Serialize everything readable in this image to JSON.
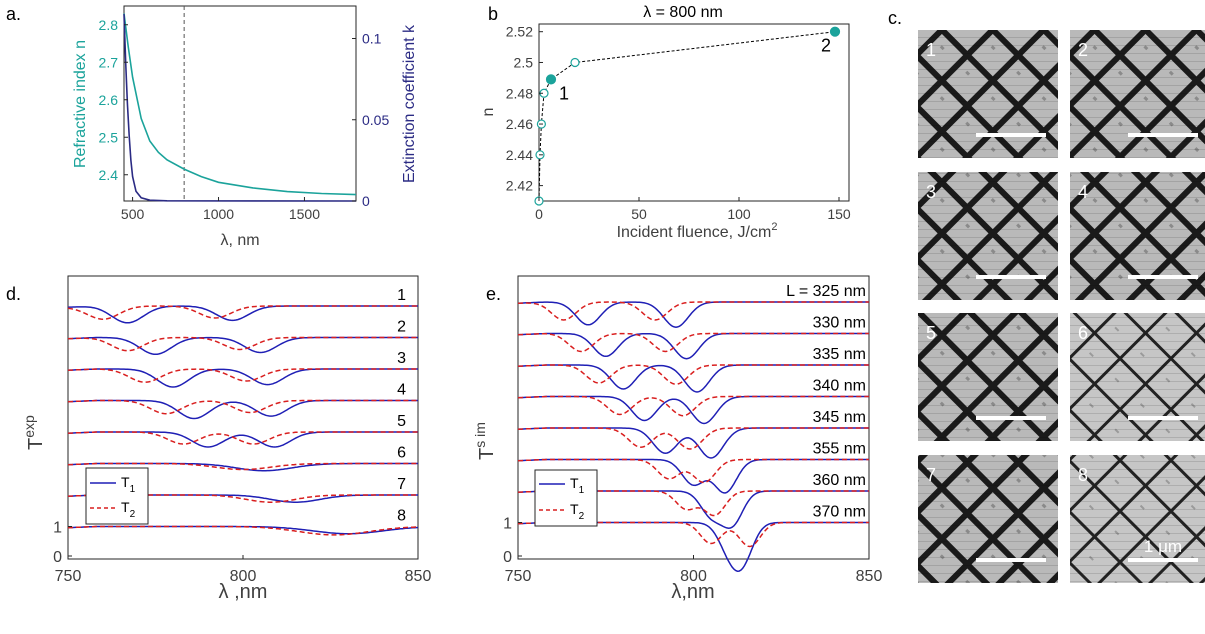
{
  "colors": {
    "teal": "#1ba39b",
    "navy": "#2b2b84",
    "blue": "#1f1fb5",
    "red": "#d91f1f",
    "axis": "#262626",
    "text": "#404040"
  },
  "panels": {
    "a": "a.",
    "b": "b",
    "c": "c.",
    "d": "d.",
    "e": "e."
  },
  "chart_data": [
    {
      "id": "a",
      "type": "line",
      "xlabel": "λ, nm",
      "ylabel_left": "Refractive index n",
      "ylabel_right": "Extinction coefficient k",
      "xlim": [
        450,
        1800
      ],
      "ylim_left": [
        2.33,
        2.85
      ],
      "ylim_right": [
        0,
        0.12
      ],
      "xticks": [
        "500",
        "1000",
        "1500"
      ],
      "xtick_values": [
        500,
        1000,
        1500
      ],
      "yticks_left": [
        "2.4",
        "2.5",
        "2.6",
        "2.7",
        "2.8"
      ],
      "ytick_values_left": [
        2.4,
        2.5,
        2.6,
        2.7,
        2.8
      ],
      "yticks_right": [
        "0",
        "0.05",
        "0.1"
      ],
      "ytick_values_right": [
        0,
        0.05,
        0.1
      ],
      "vline_x": 800,
      "series": [
        {
          "axis": "left",
          "color": "teal",
          "x": [
            450,
            475,
            500,
            550,
            600,
            650,
            700,
            800,
            900,
            1000,
            1200,
            1400,
            1600,
            1800
          ],
          "y": [
            2.83,
            2.74,
            2.66,
            2.55,
            2.49,
            2.46,
            2.44,
            2.415,
            2.395,
            2.38,
            2.365,
            2.355,
            2.35,
            2.347
          ]
        },
        {
          "axis": "right",
          "color": "navy",
          "x": [
            450,
            460,
            470,
            480,
            490,
            500,
            520,
            550,
            600,
            700,
            1800
          ],
          "y": [
            0.115,
            0.085,
            0.06,
            0.04,
            0.025,
            0.015,
            0.006,
            0.002,
            0.0005,
            0.0001,
            0
          ]
        }
      ]
    },
    {
      "id": "b",
      "type": "scatter",
      "title": "λ = 800 nm",
      "xlabel": "Incident fluence, J/cm",
      "xlabel_sup": "2",
      "ylabel": "n",
      "xlim": [
        0,
        155
      ],
      "ylim": [
        2.41,
        2.525
      ],
      "xticks": [
        "0",
        "50",
        "100",
        "150"
      ],
      "xtick_values": [
        0,
        50,
        100,
        150
      ],
      "yticks": [
        "2.42",
        "2.44",
        "2.46",
        "2.48",
        "2.5",
        "2.52"
      ],
      "ytick_values": [
        2.42,
        2.44,
        2.46,
        2.48,
        2.5,
        2.52
      ],
      "points": [
        {
          "x": 0,
          "y": 2.41,
          "filled": false
        },
        {
          "x": 0.5,
          "y": 2.44,
          "filled": false
        },
        {
          "x": 1.2,
          "y": 2.46,
          "filled": false
        },
        {
          "x": 2.5,
          "y": 2.48,
          "filled": false
        },
        {
          "x": 6,
          "y": 2.489,
          "filled": true,
          "label": "1"
        },
        {
          "x": 18,
          "y": 2.5,
          "filled": false
        },
        {
          "x": 148,
          "y": 2.52,
          "filled": true,
          "label": "2"
        }
      ]
    },
    {
      "id": "d",
      "type": "line",
      "ylabel": "T",
      "ylabel_sub": "exp",
      "xlabel": "λ ,nm",
      "xlim": [
        750,
        850
      ],
      "xticks": [
        "750",
        "800",
        "850"
      ],
      "xtick_values": [
        750,
        800,
        850
      ],
      "yticks": [
        "0",
        "1"
      ],
      "legend": [
        "T",
        "T"
      ],
      "legend_subs": [
        "1",
        "2"
      ],
      "curve_labels": [
        "1",
        "2",
        "3",
        "4",
        "5",
        "6",
        "7",
        "8"
      ],
      "dips": [
        {
          "t1": [
            767,
            797
          ],
          "t2": [
            760,
            792
          ],
          "depth1": [
            0.28,
            0.24
          ],
          "depth2": [
            0.22,
            0.2
          ],
          "w": 4.5
        },
        {
          "t1": [
            775,
            805
          ],
          "t2": [
            767,
            799
          ],
          "depth1": [
            0.28,
            0.25
          ],
          "depth2": [
            0.22,
            0.2
          ],
          "w": 4.5
        },
        {
          "t1": [
            780,
            807
          ],
          "t2": [
            772,
            801
          ],
          "depth1": [
            0.3,
            0.26
          ],
          "depth2": [
            0.22,
            0.2
          ],
          "w": 4.5
        },
        {
          "t1": [
            786,
            808
          ],
          "t2": [
            778,
            802
          ],
          "depth1": [
            0.3,
            0.26
          ],
          "depth2": [
            0.22,
            0.2
          ],
          "w": 4.5
        },
        {
          "t1": [
            790,
            809
          ],
          "t2": [
            783,
            803
          ],
          "depth1": [
            0.25,
            0.25
          ],
          "depth2": [
            0.2,
            0.2
          ],
          "w": 4.5
        },
        {
          "t1": [
            806,
            806
          ],
          "t2": [
            800,
            800
          ],
          "depth1": [
            0.12,
            0.12
          ],
          "depth2": [
            0.1,
            0.1
          ],
          "w": 8
        },
        {
          "t1": [
            815,
            815
          ],
          "t2": [
            808,
            808
          ],
          "depth1": [
            0.12,
            0.12
          ],
          "depth2": [
            0.12,
            0.12
          ],
          "w": 7
        },
        {
          "t1": [
            830,
            830
          ],
          "t2": [
            826,
            826
          ],
          "depth1": [
            0.12,
            0.12
          ],
          "depth2": [
            0.14,
            0.14
          ],
          "w": 10
        }
      ]
    },
    {
      "id": "e",
      "type": "line",
      "ylabel": "T",
      "ylabel_sub": "s im",
      "xlabel": "λ,nm",
      "xlim": [
        750,
        850
      ],
      "xticks": [
        "750",
        "800",
        "850"
      ],
      "xtick_values": [
        750,
        800,
        850
      ],
      "yticks": [
        "0",
        "1"
      ],
      "legend": [
        "T",
        "T"
      ],
      "legend_subs": [
        "1",
        "2"
      ],
      "curve_labels": [
        "L = 325 nm",
        "330 nm",
        "335 nm",
        "340 nm",
        "345 nm",
        "355 nm",
        "360 nm",
        "370 nm"
      ],
      "dips": [
        {
          "t1": [
            770,
            795
          ],
          "t2": [
            763,
            789
          ],
          "depth1": [
            0.38,
            0.42
          ],
          "depth2": [
            0.3,
            0.3
          ],
          "w": 3.5
        },
        {
          "t1": [
            775,
            798
          ],
          "t2": [
            768,
            792
          ],
          "depth1": [
            0.38,
            0.42
          ],
          "depth2": [
            0.3,
            0.3
          ],
          "w": 3.5
        },
        {
          "t1": [
            780,
            801
          ],
          "t2": [
            773,
            795
          ],
          "depth1": [
            0.4,
            0.45
          ],
          "depth2": [
            0.3,
            0.32
          ],
          "w": 3.5
        },
        {
          "t1": [
            786,
            803
          ],
          "t2": [
            779,
            797
          ],
          "depth1": [
            0.4,
            0.45
          ],
          "depth2": [
            0.3,
            0.32
          ],
          "w": 3.5
        },
        {
          "t1": [
            792,
            805
          ],
          "t2": [
            785,
            799
          ],
          "depth1": [
            0.42,
            0.5
          ],
          "depth2": [
            0.32,
            0.35
          ],
          "w": 3.5
        },
        {
          "t1": [
            800,
            809
          ],
          "t2": [
            793,
            803
          ],
          "depth1": [
            0.42,
            0.55
          ],
          "depth2": [
            0.32,
            0.38
          ],
          "w": 3.2
        },
        {
          "t1": [
            805,
            811
          ],
          "t2": [
            798,
            806
          ],
          "depth1": [
            0.4,
            0.55
          ],
          "depth2": [
            0.3,
            0.4
          ],
          "w": 3
        },
        {
          "t1": [
            810,
            814
          ],
          "t2": [
            805,
            816
          ],
          "depth1": [
            0.4,
            0.6
          ],
          "depth2": [
            0.35,
            0.4
          ],
          "w": 3
        }
      ]
    }
  ],
  "sem": {
    "images": [
      {
        "num": "1"
      },
      {
        "num": "2"
      },
      {
        "num": "3"
      },
      {
        "num": "4"
      },
      {
        "num": "5"
      },
      {
        "num": "6"
      },
      {
        "num": "7"
      },
      {
        "num": "8"
      }
    ],
    "scale_label": "1 μm"
  }
}
